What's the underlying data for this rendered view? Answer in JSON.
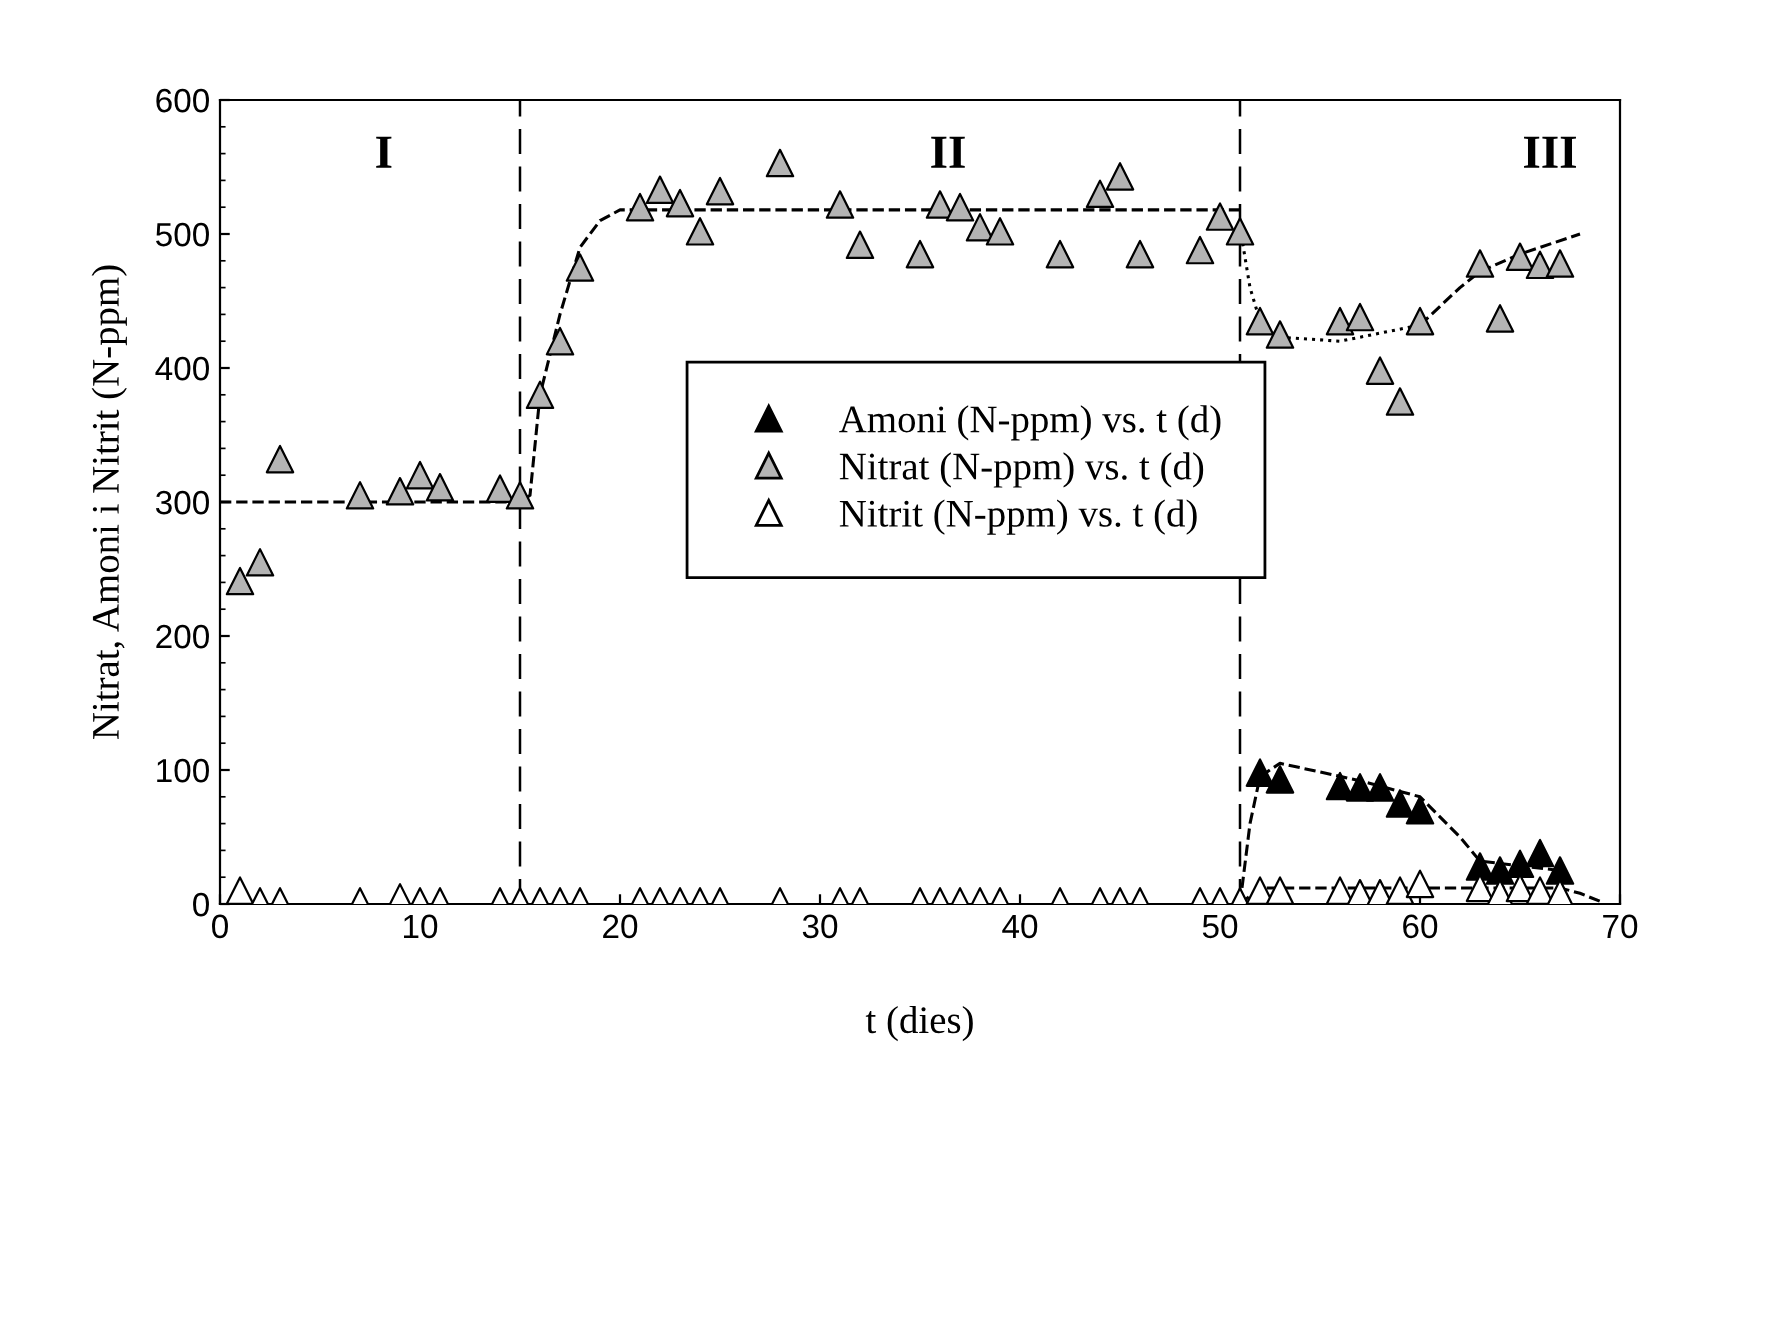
{
  "chart_data": {
    "type": "scatter",
    "xlabel": "t (dies)",
    "ylabel": "Nitrat, Amoni i Nitrit (N-ppm)",
    "xlim": [
      0,
      70
    ],
    "xticks": [
      0,
      10,
      20,
      30,
      40,
      50,
      60,
      70
    ],
    "ylim": [
      0,
      600
    ],
    "yticks": [
      0,
      100,
      200,
      300,
      400,
      500,
      600
    ],
    "legend": "center",
    "grid": false,
    "annotations": [
      "I",
      "II",
      "III"
    ],
    "ref_lines": [
      {
        "axis": "x",
        "value": 15,
        "color": "#000000",
        "line_style": "dashed"
      },
      {
        "axis": "x",
        "value": 51,
        "color": "#000000",
        "line_style": "dashed"
      }
    ],
    "series": [
      {
        "name": "Amoni (N-ppm) vs. t (d)",
        "color": "#000000",
        "marker": "triangle",
        "x": [
          52,
          53,
          56,
          57,
          58,
          59,
          60,
          63,
          64,
          65,
          66,
          67
        ],
        "values": [
          98,
          93,
          88,
          87,
          87,
          75,
          70,
          28,
          25,
          30,
          38,
          25
        ]
      },
      {
        "name": "Nitrat (N-ppm) vs. t (d)",
        "color": "#b4b4b4",
        "marker": "triangle",
        "x": [
          1,
          2,
          3,
          7,
          9,
          10,
          11,
          14,
          15,
          16,
          17,
          18,
          21,
          22,
          23,
          24,
          25,
          28,
          31,
          32,
          35,
          36,
          37,
          38,
          39,
          42,
          44,
          45,
          46,
          49,
          50,
          51,
          52,
          53,
          56,
          57,
          58,
          59,
          60,
          63,
          64,
          65,
          66,
          67
        ],
        "values": [
          241,
          255,
          332,
          305,
          308,
          320,
          311,
          310,
          305,
          380,
          420,
          475,
          520,
          533,
          523,
          502,
          532,
          553,
          522,
          492,
          485,
          522,
          520,
          505,
          502,
          485,
          530,
          543,
          485,
          488,
          513,
          502,
          435,
          425,
          435,
          438,
          398,
          375,
          435,
          478,
          437,
          483,
          477,
          478
        ]
      },
      {
        "name": "Nitrit (N-ppm) vs. t (d)",
        "color": "#ffffff",
        "marker": "triangle",
        "x": [
          1,
          2,
          3,
          7,
          9,
          10,
          11,
          14,
          15,
          16,
          17,
          18,
          21,
          22,
          23,
          24,
          25,
          28,
          31,
          32,
          35,
          36,
          37,
          38,
          39,
          42,
          44,
          45,
          46,
          49,
          50,
          51,
          52,
          53,
          56,
          57,
          58,
          59,
          60,
          63,
          64,
          65,
          66,
          67
        ],
        "values": [
          10,
          2,
          2,
          2,
          5,
          2,
          2,
          2,
          2,
          2,
          2,
          2,
          2,
          2,
          2,
          2,
          2,
          2,
          2,
          2,
          2,
          2,
          2,
          2,
          2,
          2,
          2,
          2,
          2,
          2,
          2,
          2,
          10,
          10,
          10,
          8,
          8,
          10,
          15,
          12,
          8,
          12,
          10,
          8
        ]
      },
      {
        "type": "line",
        "color": "#000000",
        "line_style": "dashed",
        "x": [
          0,
          15,
          15.5,
          16,
          17,
          18,
          19,
          20,
          51
        ],
        "values": [
          300,
          300,
          305,
          380,
          440,
          490,
          510,
          518,
          518
        ]
      },
      {
        "type": "line",
        "color": "#000000",
        "line_style": "dotted",
        "x": [
          51,
          51.5,
          52,
          53,
          56,
          60
        ],
        "values": [
          505,
          460,
          435,
          423,
          420,
          432
        ]
      },
      {
        "type": "line",
        "color": "#000000",
        "line_style": "dashed",
        "x": [
          60,
          62,
          63,
          65,
          68
        ],
        "values": [
          432,
          460,
          472,
          485,
          500
        ]
      },
      {
        "type": "line",
        "color": "#000000",
        "line_style": "dashed",
        "x": [
          51,
          51.5,
          52,
          53,
          57,
          60,
          62,
          63,
          67
        ],
        "values": [
          0,
          60,
          95,
          105,
          92,
          80,
          50,
          32,
          25
        ]
      },
      {
        "type": "line",
        "color": "#000000",
        "line_style": "dashed",
        "x": [
          51,
          52,
          67,
          68,
          69
        ],
        "values": [
          0,
          12,
          12,
          8,
          2
        ]
      }
    ]
  }
}
